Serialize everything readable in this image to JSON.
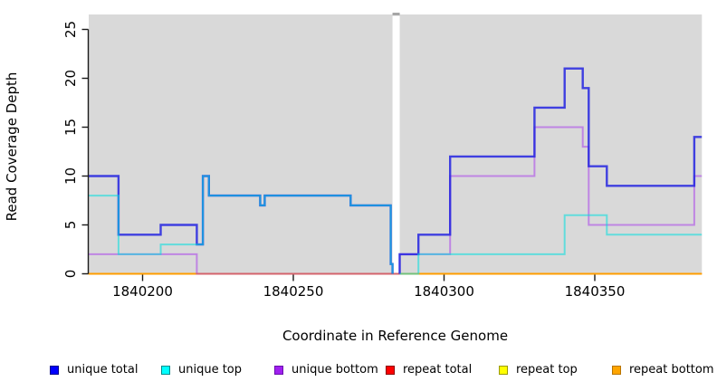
{
  "chart_data": {
    "type": "line",
    "subtype": "step-coverage-plot",
    "title": "",
    "xlabel": "Coordinate in Reference Genome",
    "ylabel": "Read Coverage Depth",
    "x_ticks": [
      1840200,
      1840250,
      1840300,
      1840350
    ],
    "y_ticks": [
      0,
      5,
      10,
      15,
      20,
      25
    ],
    "xlim": [
      1840182,
      1840385.5
    ],
    "ylim": [
      0,
      26.5
    ],
    "plot_background": "#d9d9d9",
    "gap_region": {
      "x_start": 1840282.9,
      "x_end": 1840285.3,
      "fill": "#ffffff",
      "cap_fill": "#a6a6a6"
    },
    "grid": "off",
    "legend_position": "bottom",
    "series": [
      {
        "name": "repeat total",
        "color": "#e00000",
        "opacity": 1,
        "width": 1.6,
        "segments": [
          [
            [
              1840182,
              0
            ],
            [
              1840385.5,
              0
            ]
          ]
        ]
      },
      {
        "name": "repeat top",
        "color": "#ffee00",
        "opacity": 1,
        "width": 1.6,
        "segments": [
          [
            [
              1840182,
              0
            ],
            [
              1840385.5,
              0
            ]
          ]
        ]
      },
      {
        "name": "repeat bottom",
        "color": "#ff9d00",
        "opacity": 1,
        "width": 2,
        "segments": [
          [
            [
              1840182,
              0
            ],
            [
              1840385.5,
              0
            ]
          ]
        ]
      },
      {
        "name": "unique bottom",
        "color": "#a020f0",
        "opacity": 0.45,
        "width": 2,
        "segments": [
          [
            [
              1840182,
              2
            ],
            [
              1840218,
              2
            ],
            [
              1840218,
              0
            ],
            [
              1840285.3,
              0
            ],
            [
              1840285.3,
              2
            ],
            [
              1840302,
              2
            ],
            [
              1840302,
              10
            ],
            [
              1840330,
              10
            ],
            [
              1840330,
              15
            ],
            [
              1840346,
              15
            ],
            [
              1840346,
              13
            ],
            [
              1840348,
              13
            ],
            [
              1840348,
              5
            ],
            [
              1840383,
              5
            ],
            [
              1840383,
              10
            ],
            [
              1840385.5,
              10
            ]
          ]
        ]
      },
      {
        "name": "unique total",
        "color": "#2323e0",
        "opacity": 0.85,
        "width": 2.4,
        "segments": [
          [
            [
              1840182,
              10
            ],
            [
              1840192,
              10
            ],
            [
              1840192,
              4
            ],
            [
              1840206,
              4
            ],
            [
              1840206,
              5
            ],
            [
              1840218,
              5
            ],
            [
              1840218,
              3
            ],
            [
              1840220,
              3
            ],
            [
              1840220,
              10
            ],
            [
              1840222,
              10
            ],
            [
              1840222,
              8
            ],
            [
              1840239,
              8
            ],
            [
              1840239,
              7
            ],
            [
              1840240.5,
              7
            ],
            [
              1840240.5,
              8
            ],
            [
              1840269,
              8
            ],
            [
              1840269,
              7
            ],
            [
              1840282.3,
              7
            ],
            [
              1840282.3,
              1
            ],
            [
              1840282.9,
              1
            ],
            [
              1840282.9,
              0
            ]
          ],
          [
            [
              1840285.3,
              0
            ],
            [
              1840285.3,
              2
            ],
            [
              1840291.5,
              2
            ],
            [
              1840291.5,
              4
            ],
            [
              1840302,
              4
            ],
            [
              1840302,
              12
            ],
            [
              1840330,
              12
            ],
            [
              1840330,
              17
            ],
            [
              1840340,
              17
            ],
            [
              1840340,
              21
            ],
            [
              1840346,
              21
            ],
            [
              1840346,
              19
            ],
            [
              1840348,
              19
            ],
            [
              1840348,
              11
            ],
            [
              1840354,
              11
            ],
            [
              1840354,
              9
            ],
            [
              1840383,
              9
            ],
            [
              1840383,
              14
            ],
            [
              1840385.5,
              14
            ]
          ]
        ]
      },
      {
        "name": "unique top",
        "color": "#00dede",
        "opacity": 0.55,
        "width": 2,
        "segments": [
          [
            [
              1840182,
              8
            ],
            [
              1840192,
              8
            ],
            [
              1840192,
              2
            ],
            [
              1840206,
              2
            ],
            [
              1840206,
              3
            ],
            [
              1840220,
              3
            ],
            [
              1840220,
              10
            ],
            [
              1840222,
              10
            ],
            [
              1840222,
              8
            ],
            [
              1840239,
              8
            ],
            [
              1840239,
              7
            ],
            [
              1840240.5,
              7
            ],
            [
              1840240.5,
              8
            ],
            [
              1840269,
              8
            ],
            [
              1840269,
              7
            ],
            [
              1840282.3,
              7
            ],
            [
              1840282.3,
              1
            ],
            [
              1840282.9,
              1
            ],
            [
              1840282.9,
              0
            ]
          ],
          [
            [
              1840285.3,
              0
            ],
            [
              1840291.5,
              0
            ],
            [
              1840291.5,
              2
            ],
            [
              1840340,
              2
            ],
            [
              1840340,
              6
            ],
            [
              1840354,
              6
            ],
            [
              1840354,
              4
            ],
            [
              1840385.5,
              4
            ]
          ]
        ]
      }
    ]
  },
  "axes": {
    "x_label": "Coordinate in Reference Genome",
    "y_label": "Read Coverage Depth",
    "tick_color": "#1a1a1a",
    "label_color": "#000000"
  },
  "legend": {
    "items": [
      {
        "label": "unique total",
        "fill": "#0000ff",
        "border": "#00008b"
      },
      {
        "label": "unique top",
        "fill": "#00ffff",
        "border": "#008b8b"
      },
      {
        "label": "unique bottom",
        "fill": "#a020f0",
        "border": "#6a0dad"
      },
      {
        "label": "repeat total",
        "fill": "#ff0000",
        "border": "#8b0000"
      },
      {
        "label": "repeat top",
        "fill": "#ffff00",
        "border": "#9a9a00"
      },
      {
        "label": "repeat bottom",
        "fill": "#ffa500",
        "border": "#b87400"
      }
    ]
  }
}
